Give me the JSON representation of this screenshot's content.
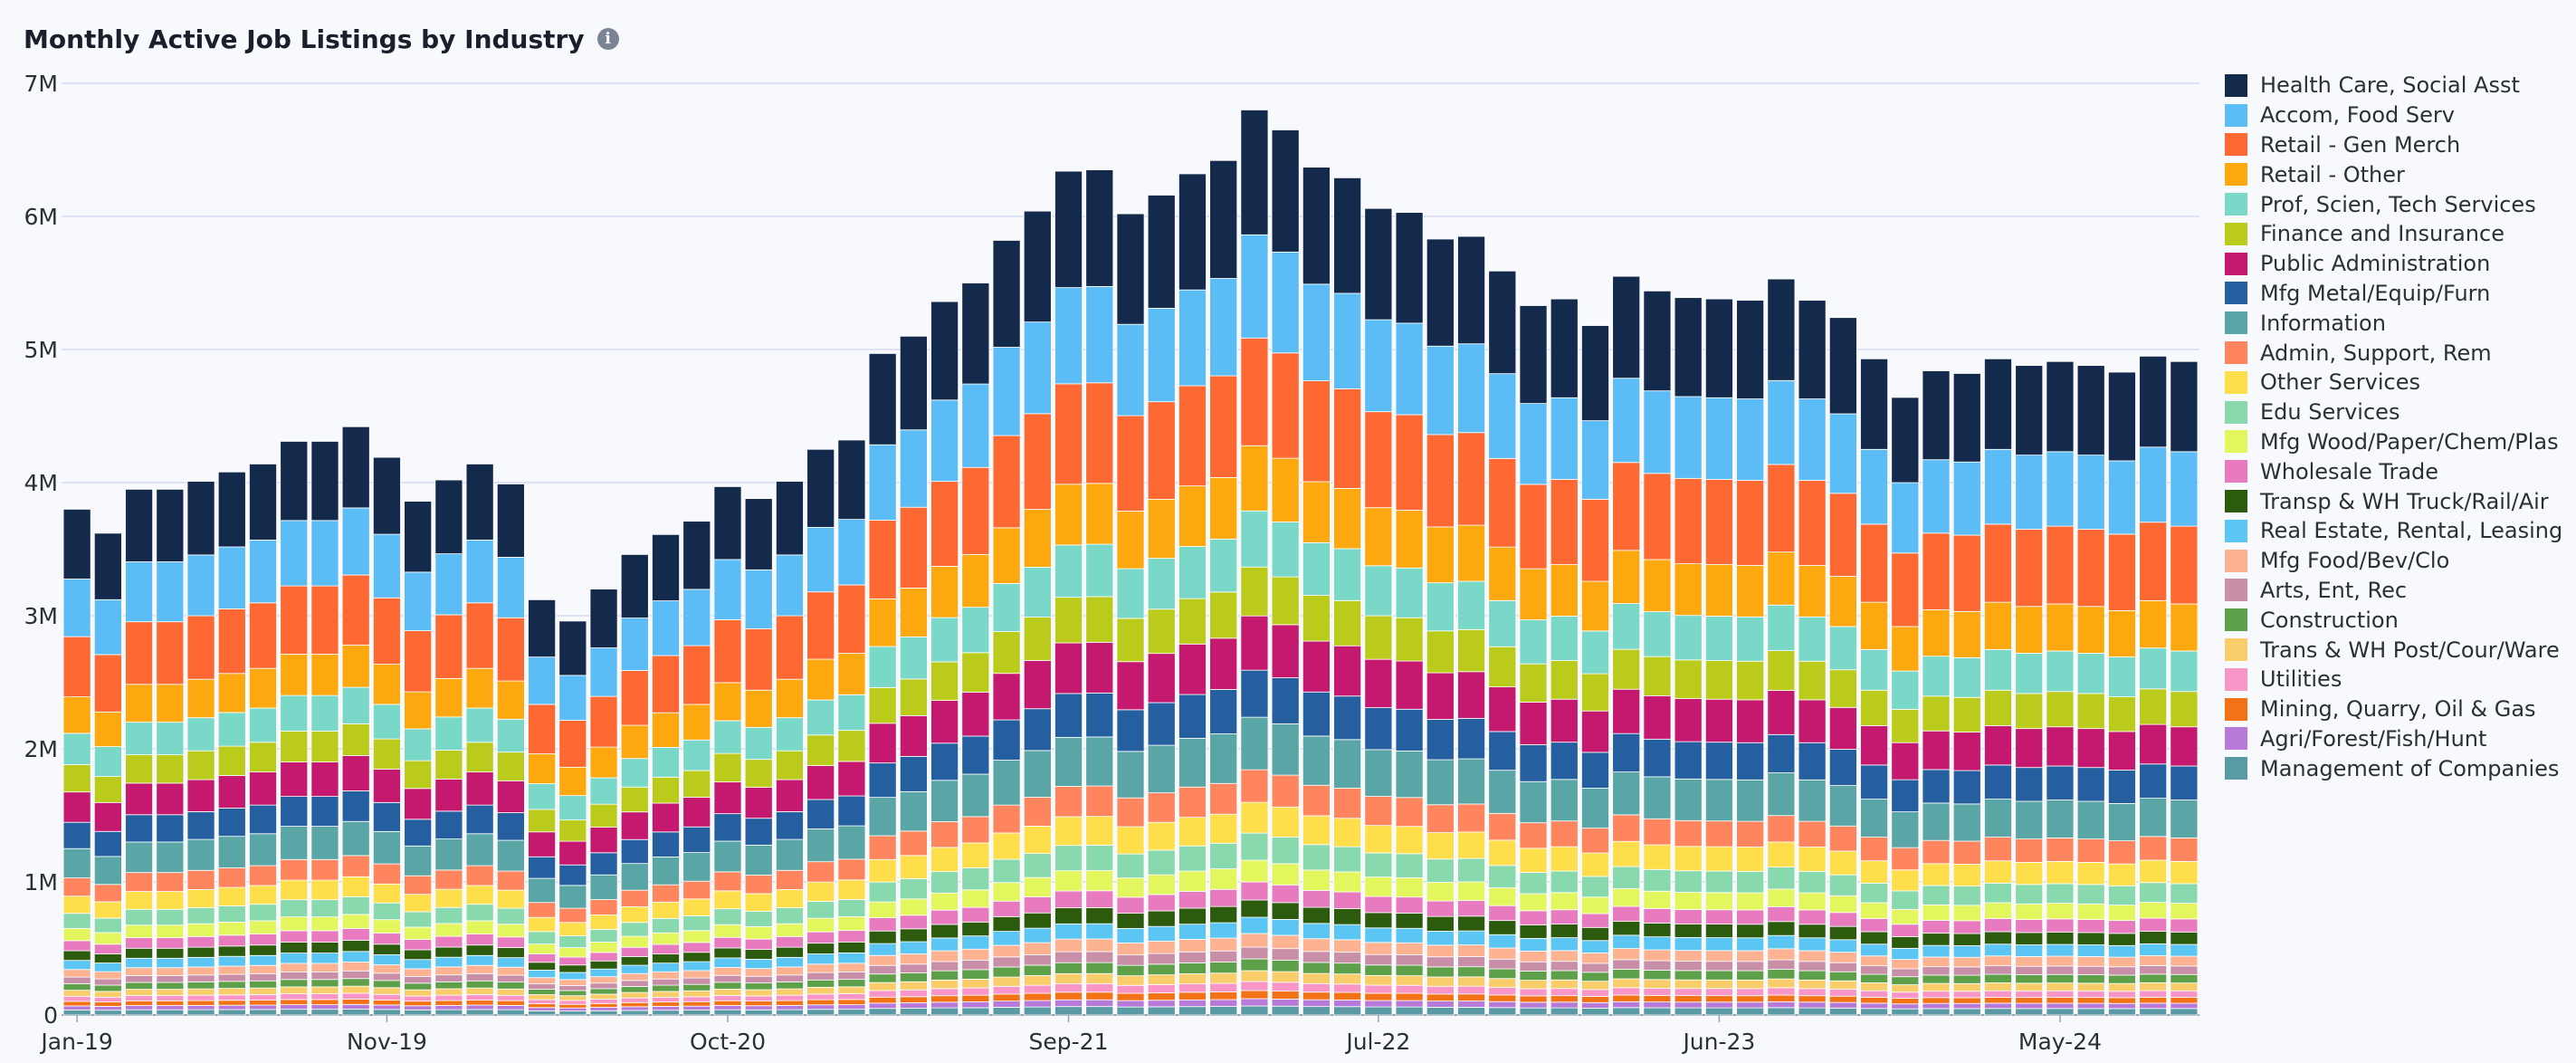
{
  "header": {
    "title": "Monthly Active Job Listings by Industry",
    "info_icon": "info-icon"
  },
  "chart_data": {
    "type": "bar",
    "stacked": true,
    "title": "Monthly Active Job Listings by Industry",
    "xlabel": "",
    "ylabel": "",
    "ylim": [
      0,
      7000000
    ],
    "y_ticks": [
      0,
      1000000,
      2000000,
      3000000,
      4000000,
      5000000,
      6000000,
      7000000
    ],
    "y_tick_labels": [
      "0",
      "1M",
      "2M",
      "3M",
      "4M",
      "5M",
      "6M",
      "7M"
    ],
    "x_tick_labels": [
      {
        "index": 0,
        "label": "Jan-19"
      },
      {
        "index": 10,
        "label": "Nov-19"
      },
      {
        "index": 21,
        "label": "Oct-20"
      },
      {
        "index": 32,
        "label": "Sep-21"
      },
      {
        "index": 42,
        "label": "Jul-22"
      },
      {
        "index": 53,
        "label": "Jun-23"
      },
      {
        "index": 64,
        "label": "May-24"
      }
    ],
    "grid": true,
    "legend_position": "right",
    "categories": [
      "Jan-19",
      "Feb-19",
      "Mar-19",
      "Apr-19",
      "May-19",
      "Jun-19",
      "Jul-19",
      "Aug-19",
      "Sep-19",
      "Oct-19",
      "Nov-19",
      "Dec-19",
      "Jan-20",
      "Feb-20",
      "Mar-20",
      "Apr-20",
      "May-20",
      "Jun-20",
      "Jul-20",
      "Aug-20",
      "Sep-20",
      "Oct-20",
      "Nov-20",
      "Dec-20",
      "Jan-21",
      "Feb-21",
      "Mar-21",
      "Apr-21",
      "May-21",
      "Jun-21",
      "Jul-21",
      "Aug-21",
      "Sep-21",
      "Oct-21",
      "Nov-21",
      "Dec-21",
      "Jan-22",
      "Feb-22",
      "Mar-22",
      "Apr-22",
      "May-22",
      "Jun-22",
      "Jul-22",
      "Aug-22",
      "Sep-22",
      "Oct-22",
      "Nov-22",
      "Dec-22",
      "Jan-23",
      "Feb-23",
      "Mar-23",
      "Apr-23",
      "May-23",
      "Jun-23",
      "Jul-23",
      "Aug-23",
      "Sep-23",
      "Oct-23",
      "Nov-23",
      "Dec-23",
      "Jan-24",
      "Feb-24",
      "Mar-24",
      "Apr-24",
      "May-24",
      "Jun-24",
      "Jul-24",
      "Aug-24",
      "Sep-24"
    ],
    "totals": [
      3800000,
      3620000,
      3950000,
      3950000,
      4010000,
      4080000,
      4140000,
      4310000,
      4310000,
      4420000,
      4190000,
      3860000,
      4020000,
      4140000,
      3990000,
      3120000,
      2960000,
      3200000,
      3460000,
      3610000,
      3710000,
      3970000,
      3880000,
      4010000,
      4250000,
      4320000,
      4970000,
      5100000,
      5360000,
      5500000,
      5820000,
      6040000,
      6340000,
      6350000,
      6020000,
      6160000,
      6320000,
      6420000,
      6800000,
      6650000,
      6370000,
      6290000,
      6060000,
      6030000,
      5830000,
      5850000,
      5590000,
      5330000,
      5380000,
      5180000,
      5550000,
      5440000,
      5390000,
      5380000,
      5370000,
      5530000,
      5370000,
      5240000,
      4930000,
      4640000,
      4840000,
      4820000,
      4930000,
      4880000,
      4910000,
      4880000,
      4830000,
      4950000,
      4910000
    ],
    "series": [
      {
        "name": "Health Care, Social Asst",
        "color": "#142a4d",
        "share": 0.138
      },
      {
        "name": "Accom, Food Serv",
        "color": "#5cbcf5",
        "share": 0.114
      },
      {
        "name": "Retail - Gen Merch",
        "color": "#fe6933",
        "share": 0.119
      },
      {
        "name": "Retail - Other",
        "color": "#fda80e",
        "share": 0.072
      },
      {
        "name": "Prof, Scien, Tech Services",
        "color": "#7ad8c9",
        "share": 0.062
      },
      {
        "name": "Finance and Insurance",
        "color": "#bacb1c",
        "share": 0.054
      },
      {
        "name": "Public Administration",
        "color": "#c5196f",
        "share": 0.06
      },
      {
        "name": "Mfg Metal/Equip/Furn",
        "color": "#255fa0",
        "share": 0.052
      },
      {
        "name": "Information",
        "color": "#5aa5a5",
        "share": 0.058
      },
      {
        "name": "Admin, Support, Rem",
        "color": "#fe855e",
        "share": 0.036
      },
      {
        "name": "Other Services",
        "color": "#fede4b",
        "share": 0.034
      },
      {
        "name": "Edu Services",
        "color": "#89d9af",
        "share": 0.03
      },
      {
        "name": "Mfg Wood/Paper/Chem/Plas",
        "color": "#e4f65e",
        "share": 0.024
      },
      {
        "name": "Wholesale Trade",
        "color": "#e87abf",
        "share": 0.02
      },
      {
        "name": "Transp & WH Truck/Rail/Air",
        "color": "#2d5b0d",
        "share": 0.019
      },
      {
        "name": "Real Estate, Rental, Leasing",
        "color": "#5bc5f4",
        "share": 0.018
      },
      {
        "name": "Mfg Food/Bev/Clo",
        "color": "#fdb292",
        "share": 0.015
      },
      {
        "name": "Arts, Ent, Rec",
        "color": "#c98fa8",
        "share": 0.013
      },
      {
        "name": "Construction",
        "color": "#5ea04a",
        "share": 0.013
      },
      {
        "name": "Trans & WH Post/Cour/Ware",
        "color": "#f9ce6a",
        "share": 0.012
      },
      {
        "name": "Utilities",
        "color": "#fa96c7",
        "share": 0.01
      },
      {
        "name": "Mining, Quarry, Oil & Gas",
        "color": "#f47216",
        "share": 0.009
      },
      {
        "name": "Agri/Forest/Fish/Hunt",
        "color": "#b77ad9",
        "share": 0.008
      },
      {
        "name": "Management of Companies",
        "color": "#5a9aa5",
        "share": 0.01
      }
    ]
  }
}
